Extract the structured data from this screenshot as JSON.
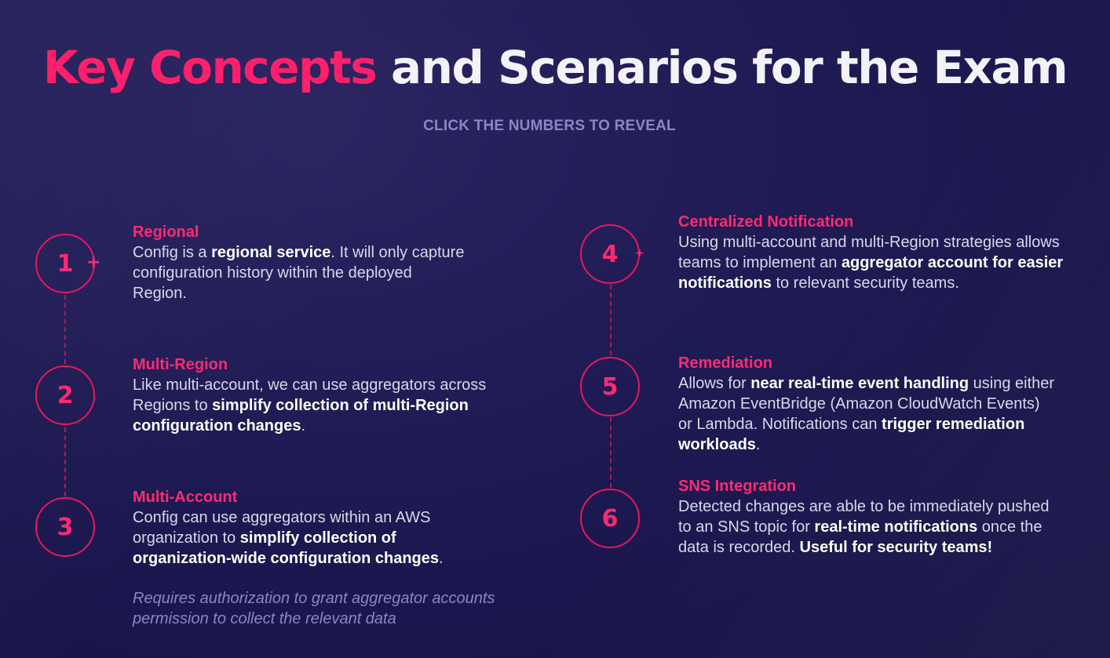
{
  "title": {
    "accent": "Key Concepts",
    "rest": "and Scenarios for the Exam"
  },
  "subtitle": "CLICK THE NUMBERS TO REVEAL",
  "markers": [
    {
      "number": "1",
      "icon": "plus-icon"
    },
    {
      "number": "2"
    },
    {
      "number": "3"
    },
    {
      "number": "4",
      "icon": "plus-icon"
    },
    {
      "number": "5"
    },
    {
      "number": "6"
    }
  ],
  "items": [
    {
      "heading": "Regional",
      "body": [
        {
          "t": "Config is a "
        },
        {
          "t": "regional service",
          "b": true
        },
        {
          "t": ". It will only capture configuration history within the deployed Region."
        }
      ]
    },
    {
      "heading": "Multi-Region",
      "body": [
        {
          "t": "Like multi-account, we can use aggregators across Regions to "
        },
        {
          "t": "simplify collection of multi-Region configuration changes",
          "b": true
        },
        {
          "t": "."
        }
      ]
    },
    {
      "heading": "Multi-Account",
      "body": [
        {
          "t": "Config can use aggregators within an AWS organization to "
        },
        {
          "t": "simplify collection of organization-wide configuration changes",
          "b": true
        },
        {
          "t": "."
        }
      ]
    },
    {
      "heading": "Centralized Notification",
      "body": [
        {
          "t": "Using multi-account and multi-Region strategies allows teams to implement an "
        },
        {
          "t": "aggregator account for easier notifications",
          "b": true
        },
        {
          "t": " to relevant security teams."
        }
      ]
    },
    {
      "heading": "Remediation",
      "body": [
        {
          "t": "Allows for "
        },
        {
          "t": "near real-time event handling",
          "b": true
        },
        {
          "t": " using either Amazon EventBridge (Amazon CloudWatch Events) or Lambda. Notifications can "
        },
        {
          "t": "trigger remediation workloads",
          "b": true
        },
        {
          "t": "."
        }
      ]
    },
    {
      "heading": "SNS Integration",
      "body": [
        {
          "t": "Detected changes are able to be immediately pushed to an SNS topic for "
        },
        {
          "t": "real-time notifications",
          "b": true
        },
        {
          "t": " once the data is recorded. "
        },
        {
          "t": "Useful for security teams!",
          "b": true
        }
      ]
    }
  ],
  "note": "Requires authorization to grant aggregator accounts permission to collect the relevant data",
  "colors": {
    "accent": "#ff2a73",
    "background": "#1c1850",
    "muted": "#8b86c4"
  }
}
